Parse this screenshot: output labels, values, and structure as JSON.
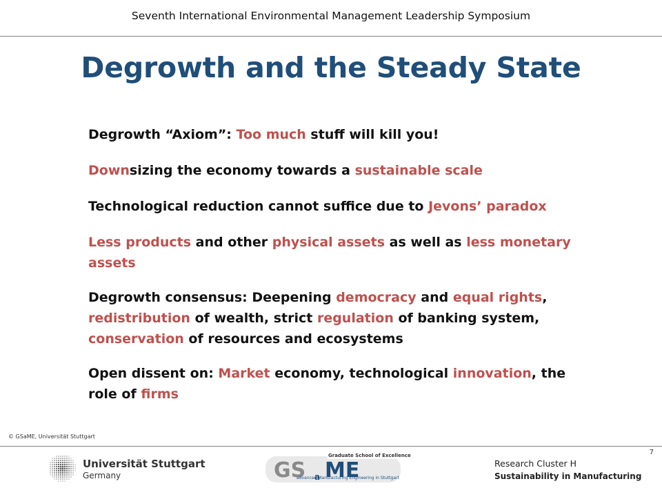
{
  "header": {
    "conference": "Seventh International Environmental Management Leadership Symposium"
  },
  "slide": {
    "title": "Degrowth and the Steady State",
    "bullets": [
      [
        {
          "t": "Degrowth “Axiom”: ",
          "hl": false
        },
        {
          "t": "Too much",
          "hl": true
        },
        {
          "t": " stuff will kill you!",
          "hl": false
        }
      ],
      [
        {
          "t": "Down",
          "hl": true
        },
        {
          "t": "sizing the economy towards a ",
          "hl": false
        },
        {
          "t": "sustainable scale",
          "hl": true
        }
      ],
      [
        {
          "t": "Technological reduction cannot suffice due to ",
          "hl": false
        },
        {
          "t": "Jevons’ paradox",
          "hl": true
        }
      ],
      [
        {
          "t": "Less products",
          "hl": true
        },
        {
          "t": " and other ",
          "hl": false
        },
        {
          "t": "physical assets",
          "hl": true
        },
        {
          "t": " as well as ",
          "hl": false
        },
        {
          "t": "less monetary assets",
          "hl": true
        }
      ],
      [
        {
          "t": "Degrowth consensus: Deepening ",
          "hl": false
        },
        {
          "t": "democracy",
          "hl": true
        },
        {
          "t": " and ",
          "hl": false
        },
        {
          "t": "equal rights",
          "hl": true
        },
        {
          "t": ", ",
          "hl": false
        },
        {
          "t": "redistribution",
          "hl": true
        },
        {
          "t": " of wealth, strict ",
          "hl": false
        },
        {
          "t": "regulation",
          "hl": true
        },
        {
          "t": " of banking system, ",
          "hl": false
        },
        {
          "t": "conservation",
          "hl": true
        },
        {
          "t": " of resources and ecosystems",
          "hl": false
        }
      ],
      [
        {
          "t": "Open dissent on: ",
          "hl": false
        },
        {
          "t": "Market",
          "hl": true
        },
        {
          "t": " economy, technological ",
          "hl": false
        },
        {
          "t": "innovation",
          "hl": true
        },
        {
          "t": ", the role of ",
          "hl": false
        },
        {
          "t": "firms",
          "hl": true
        }
      ]
    ]
  },
  "footer": {
    "copyright": "© GSaME, Universität Stuttgart",
    "page_number": "7",
    "university_name": "Universität Stuttgart",
    "university_country": "Germany",
    "gsame_tag": "Graduate School of Excellence",
    "gsame_subtitle": "advanced Manufacturing Engineering in Stuttgart",
    "cluster": "Research Cluster H",
    "cluster_subtitle": "Sustainability in Manufacturing"
  },
  "colors": {
    "title": "#1f4e79",
    "highlight": "#c0504d"
  }
}
